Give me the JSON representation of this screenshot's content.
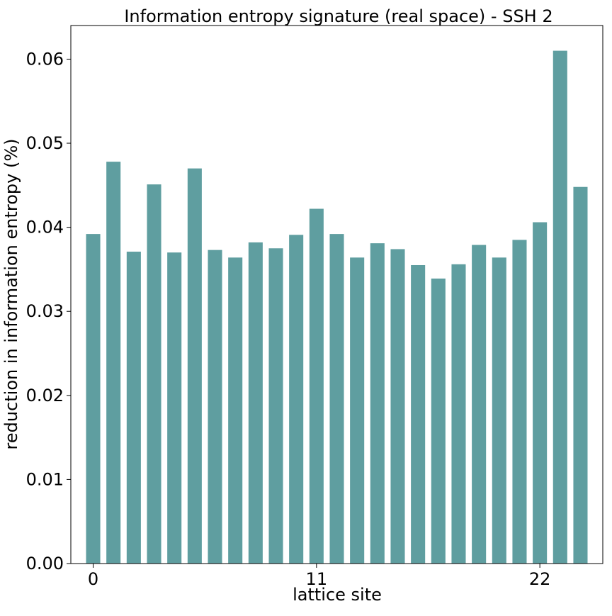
{
  "chart_data": {
    "type": "bar",
    "title": "Information entropy signature (real space) - SSH 2",
    "xlabel": "lattice site",
    "ylabel": "reduction in information entropy (%)",
    "x": [
      0,
      1,
      2,
      3,
      4,
      5,
      6,
      7,
      8,
      9,
      10,
      11,
      12,
      13,
      14,
      15,
      16,
      17,
      18,
      19,
      20,
      21,
      22,
      23,
      24
    ],
    "values": [
      0.0392,
      0.0478,
      0.0371,
      0.0451,
      0.037,
      0.047,
      0.0373,
      0.0364,
      0.0382,
      0.0375,
      0.0391,
      0.0422,
      0.0392,
      0.0364,
      0.0381,
      0.0374,
      0.0355,
      0.0339,
      0.0356,
      0.0379,
      0.0364,
      0.0385,
      0.0406,
      0.061,
      0.0448
    ],
    "xticks": [
      0,
      11,
      22
    ],
    "xtick_labels": [
      "0",
      "11",
      "22"
    ],
    "yticks": [
      0.0,
      0.01,
      0.02,
      0.03,
      0.04,
      0.05,
      0.06
    ],
    "ytick_labels": [
      "0.00",
      "0.01",
      "0.02",
      "0.03",
      "0.04",
      "0.05",
      "0.06"
    ],
    "xlim": [
      -1.1,
      25.1
    ],
    "ylim": [
      0,
      0.064
    ],
    "bar_color": "#5f9ea0",
    "grid": false,
    "legend": false
  }
}
